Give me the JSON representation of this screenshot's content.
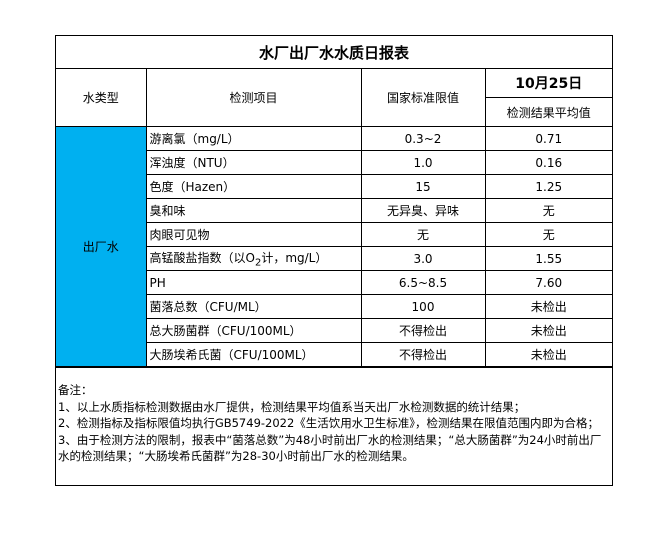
{
  "title": "水厂出厂水水质日报表",
  "headers": {
    "type": "水类型",
    "item": "检测项目",
    "limit": "国家标准限值",
    "date": "10月25日",
    "result": "检测结果平均值"
  },
  "water_type": "出厂水",
  "rows": [
    {
      "item": "游离氯（mg/L）",
      "limit": "0.3~2",
      "result": "0.71"
    },
    {
      "item": "浑浊度（NTU）",
      "limit": "1.0",
      "result": "0.16"
    },
    {
      "item": "色度（Hazen）",
      "limit": "15",
      "result": "1.25"
    },
    {
      "item": "臭和味",
      "limit": "无异臭、异味",
      "result": "无"
    },
    {
      "item": "肉眼可见物",
      "limit": "无",
      "result": "无"
    },
    {
      "item_pre": "高锰酸盐指数（以O",
      "item_sub": "2",
      "item_post": "计，mg/L）",
      "limit": "3.0",
      "result": "1.55"
    },
    {
      "item": "PH",
      "limit": "6.5~8.5",
      "result": "7.60"
    },
    {
      "item": "菌落总数（CFU/ML）",
      "limit": "100",
      "result": "未检出"
    },
    {
      "item": "总大肠菌群（CFU/100ML）",
      "limit": "不得检出",
      "result": "未检出"
    },
    {
      "item": "大肠埃希氏菌（CFU/100ML）",
      "limit": "不得检出",
      "result": "未检出"
    }
  ],
  "notes": {
    "heading": "备注：",
    "lines": [
      "1、以上水质指标检测数据由水厂提供，检测结果平均值系当天出厂水检测数据的统计结果；",
      "2、检测指标及指标限值均执行GB5749-2022《生活饮用水卫生标准》，检测结果在限值范围内即为合格；",
      "3、由于检测方法的限制，报表中“菌落总数”为48小时前出厂水的检测结果；“总大肠菌群”为24小时前出厂水的检测结果；“大肠埃希氏菌群”为28-30小时前出厂水的检测结果。"
    ]
  },
  "colors": {
    "water_type_bg": "#00b0f0"
  }
}
